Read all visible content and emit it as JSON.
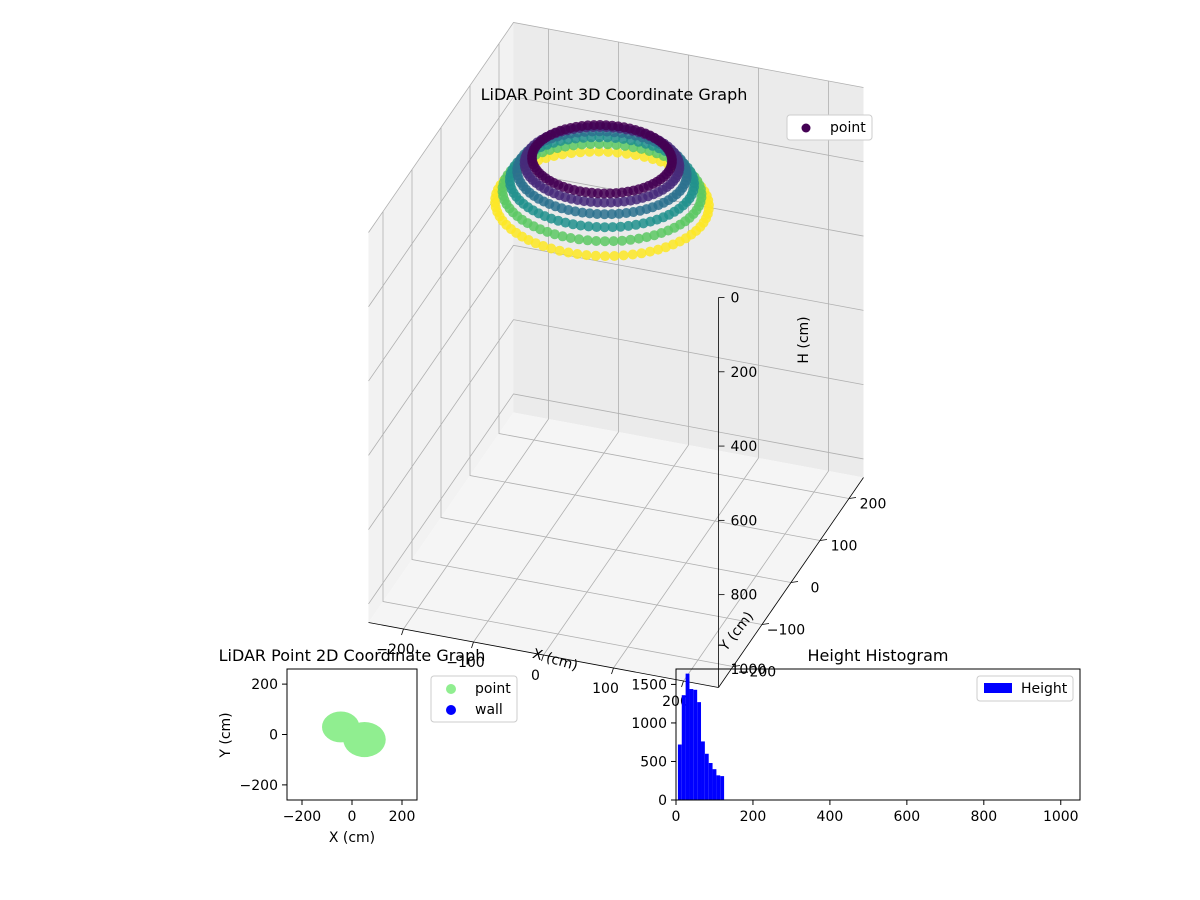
{
  "colors": {
    "pane": "#f2f2f2",
    "grid": "#b0b0b0",
    "point_2d": "#90ee90",
    "wall": "#0000ff",
    "hist": "#0000ff",
    "legend_point_3d": "#440154",
    "viridis": [
      "#440154",
      "#472a7a",
      "#3b518b",
      "#2c718e",
      "#21908d",
      "#27ad81",
      "#5cc863",
      "#aadc32",
      "#fde725"
    ]
  },
  "chart_data": [
    {
      "type": "scatter3d",
      "title": "LiDAR Point 3D Coordinate Graph",
      "xlabel": "X (cm)",
      "ylabel": "Y (cm)",
      "zlabel": "H (cm)",
      "xlim": [
        -250,
        250
      ],
      "ylim": [
        -250,
        250
      ],
      "zlim": [
        0,
        1050
      ],
      "z_inverted": true,
      "xticks": [
        "−200",
        "−100",
        "0",
        "100",
        "200"
      ],
      "yticks": [
        "−200",
        "−100",
        "0",
        "100",
        "200"
      ],
      "zticks": [
        "0",
        "200",
        "400",
        "600",
        "800",
        "1000"
      ],
      "legend": [
        {
          "label": "point",
          "marker": "circle"
        }
      ],
      "colormap": "viridis",
      "note": "ring of points centred near origin, radius ~90–150 cm, heights ~0–130 cm"
    },
    {
      "type": "scatter",
      "title": "LiDAR Point 2D Coordinate Graph",
      "xlabel": "X (cm)",
      "ylabel": "Y (cm)",
      "xlim": [
        -260,
        260
      ],
      "ylim": [
        -260,
        260
      ],
      "xticks": [
        "−200",
        "0",
        "200"
      ],
      "yticks": [
        "−200",
        "0",
        "200"
      ],
      "legend": [
        {
          "label": "point"
        },
        {
          "label": "wall"
        }
      ],
      "blobs": [
        {
          "cx": -45,
          "cy": 30,
          "r": 75
        },
        {
          "cx": 50,
          "cy": -20,
          "r": 85
        }
      ]
    },
    {
      "type": "bar",
      "title": "Height Histogram",
      "xlabel": "",
      "ylabel": "",
      "xlim": [
        0,
        1050
      ],
      "ylim": [
        0,
        1700
      ],
      "xticks": [
        "0",
        "200",
        "400",
        "600",
        "800",
        "1000"
      ],
      "yticks": [
        "0",
        "500",
        "1000",
        "1500"
      ],
      "legend": [
        {
          "label": "Height"
        }
      ],
      "bin_edges": [
        5,
        15,
        25,
        35,
        45,
        55,
        65,
        75,
        85,
        95,
        105,
        115,
        125
      ],
      "values": [
        720,
        1360,
        1640,
        1440,
        1430,
        1270,
        760,
        600,
        480,
        400,
        320,
        310
      ]
    }
  ]
}
